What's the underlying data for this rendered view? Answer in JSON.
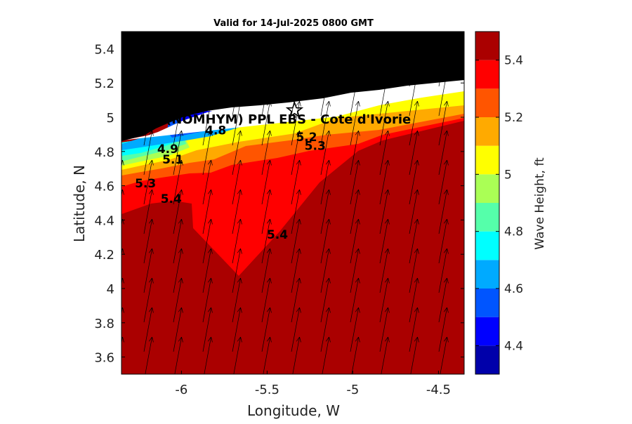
{
  "chart_data": {
    "type": "heatmap",
    "title": "Valid for 14-Jul-2025 0800 GMT",
    "xlabel": "Longitude, W",
    "ylabel": "Latitude, N",
    "xlim": [
      -6.35,
      -4.35
    ],
    "ylim": [
      3.5,
      5.5
    ],
    "x_ticks": [
      -6,
      -5.5,
      -5,
      -4.5
    ],
    "x_tick_labels": [
      "-6",
      "-5.5",
      "-5",
      "-4.5"
    ],
    "y_ticks": [
      3.6,
      3.8,
      4,
      4.2,
      4.4,
      4.6,
      4.8,
      5,
      5.2,
      5.4
    ],
    "y_tick_labels": [
      "3.6",
      "3.8",
      "4",
      "4.2",
      "4.4",
      "4.6",
      "4.8",
      "5",
      "5.2",
      "5.4"
    ],
    "site_label": "(NOMHYM) PPL EBS - Cote d'Ivorie",
    "site_marker": {
      "lon": -5.34,
      "lat": 5.04,
      "symbol": "star"
    },
    "colorbar": {
      "label": "Wave Height, ft",
      "range": [
        4.3,
        5.5
      ],
      "levels": [
        4.3,
        4.4,
        4.5,
        4.6,
        4.7,
        4.8,
        4.9,
        5.0,
        5.1,
        5.2,
        5.3,
        5.4,
        5.5
      ],
      "colors": [
        "#0000aa",
        "#0000ff",
        "#0055ff",
        "#00aaff",
        "#00ffff",
        "#55ffaa",
        "#aaff55",
        "#ffff00",
        "#ffaa00",
        "#ff5500",
        "#ff0000",
        "#aa0000"
      ],
      "tick_values": [
        4.4,
        4.6,
        4.8,
        5,
        5.2,
        5.4
      ],
      "tick_labels": [
        "4.4",
        "4.6",
        "4.8",
        "5",
        "5.2",
        "5.4"
      ]
    },
    "contour_labels": [
      {
        "text": "4.8",
        "lon": -5.8,
        "lat": 4.9
      },
      {
        "text": "4.9",
        "lon": -6.08,
        "lat": 4.79
      },
      {
        "text": "5.1",
        "lon": -6.05,
        "lat": 4.73
      },
      {
        "text": "5.3",
        "lon": -6.21,
        "lat": 4.59
      },
      {
        "text": "5.4",
        "lon": -6.06,
        "lat": 4.5
      },
      {
        "text": "5.2",
        "lon": -5.27,
        "lat": 4.86
      },
      {
        "text": "5.3",
        "lon": -5.22,
        "lat": 4.81
      },
      {
        "text": "5.4",
        "lon": -5.44,
        "lat": 4.29
      }
    ],
    "wave_direction": {
      "toward": "NNE",
      "arrow_spacing_deg": 0.12
    }
  }
}
